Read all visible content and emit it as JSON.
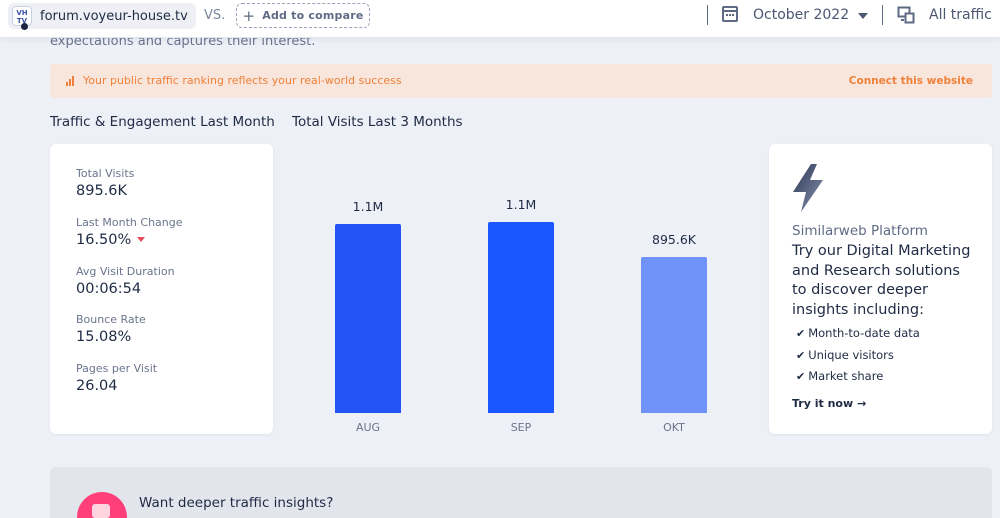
{
  "header": {
    "site": "forum.voyeur-house.tv",
    "favicon_text": "VH TV",
    "vs": "VS.",
    "add_compare": "Add to compare",
    "month": "October 2022",
    "traffic": "All traffic",
    "icons": [
      "calendar-icon",
      "chevron-down-icon",
      "traffic-device-icon"
    ]
  },
  "intro_text": "expectations and captures their interest.",
  "banner": {
    "text": "Your public traffic ranking reflects your real-world success",
    "link": "Connect this website",
    "color": "#f0813a"
  },
  "sections": {
    "engagement_title": "Traffic & Engagement Last Month",
    "visits_title": "Total Visits Last 3 Months"
  },
  "metrics": [
    {
      "label": "Total Visits",
      "value": "895.6K"
    },
    {
      "label": "Last Month Change",
      "value": "16.50%",
      "trend": "down"
    },
    {
      "label": "Avg Visit Duration",
      "value": "00:06:54"
    },
    {
      "label": "Bounce Rate",
      "value": "15.08%"
    },
    {
      "label": "Pages per Visit",
      "value": "26.04"
    }
  ],
  "chart_data": {
    "type": "bar",
    "categories": [
      "AUG",
      "SEP",
      "OKT"
    ],
    "values": [
      1090000,
      1100000,
      895600
    ],
    "data_labels": [
      "1.1M",
      "1.1M",
      "895.6K"
    ],
    "colors": [
      "#2453f5",
      "#1a57ff",
      "#6f93f8"
    ],
    "title": "",
    "xlabel": "",
    "ylabel": "",
    "grid": false
  },
  "promo": {
    "title": "Similarweb Platform",
    "headline": "Try our Digital Marketing and Research solutions to discover deeper insights including:",
    "items": [
      "Month-to-date data",
      "Unique visitors",
      "Market share"
    ],
    "cta": "Try it now"
  },
  "bottom": {
    "text": "Want deeper traffic insights?",
    "accent": "#ff3f79"
  }
}
